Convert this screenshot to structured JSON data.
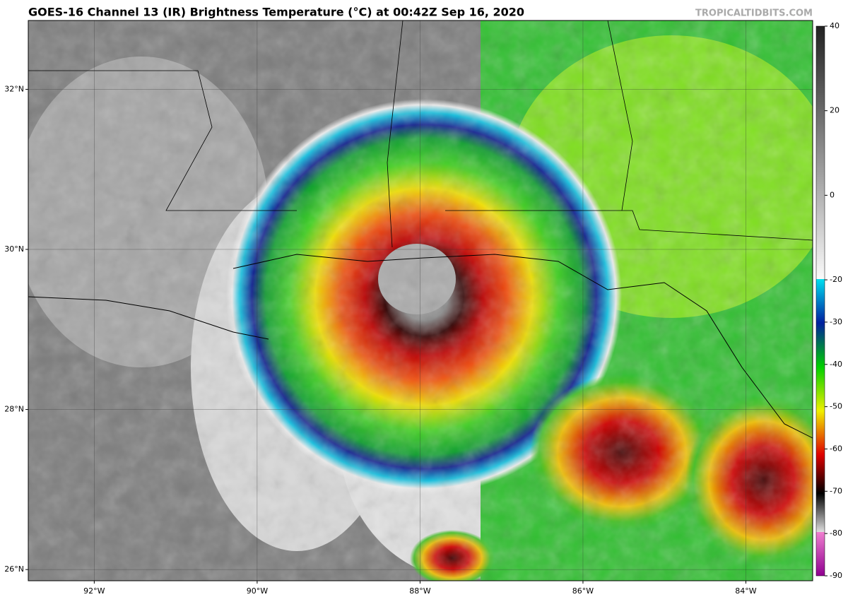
{
  "header": {
    "title": "GOES-16 Channel 13 (IR) Brightness Temperature (°C) at 00:42Z Sep 16, 2020",
    "credit": "TROPICALTIDBITS.COM"
  },
  "map": {
    "lon_range": [
      -92.81,
      -83.18
    ],
    "lat_range": [
      25.86,
      32.86
    ],
    "lon_ticks": [
      {
        "value": -92,
        "label": "92°W"
      },
      {
        "value": -90,
        "label": "90°W"
      },
      {
        "value": -88,
        "label": "88°W"
      },
      {
        "value": -86,
        "label": "86°W"
      },
      {
        "value": -84,
        "label": "84°W"
      }
    ],
    "lat_ticks": [
      {
        "value": 26,
        "label": "26°N"
      },
      {
        "value": 28,
        "label": "28°N"
      },
      {
        "value": 30,
        "label": "30°N"
      },
      {
        "value": 32,
        "label": "32°N"
      }
    ]
  },
  "colorbar": {
    "range": [
      -90,
      40
    ],
    "ticks": [
      40,
      20,
      0,
      -20,
      -30,
      -40,
      -50,
      -60,
      -70,
      -80,
      -90
    ]
  }
}
